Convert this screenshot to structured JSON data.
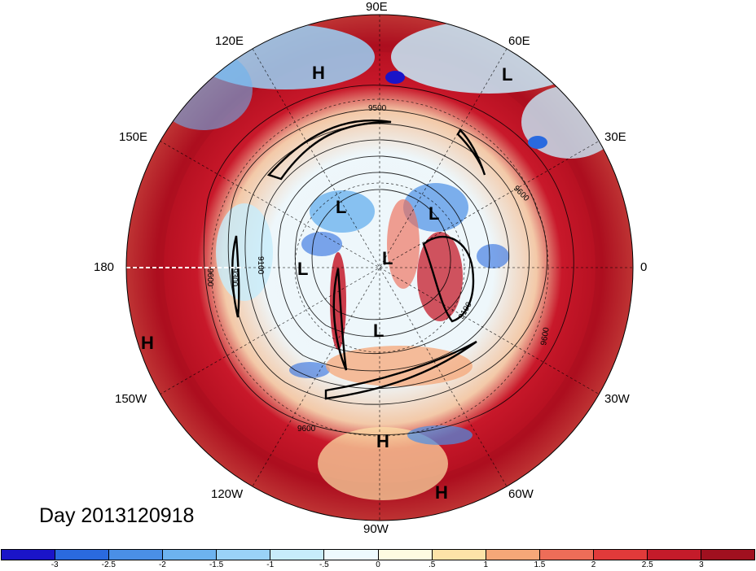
{
  "title": "Day 2013120918",
  "projection": "north-polar-stereographic",
  "longitude_labels": [
    {
      "text": "90E"
    },
    {
      "text": "120E"
    },
    {
      "text": "60E"
    },
    {
      "text": "150E"
    },
    {
      "text": "30E"
    },
    {
      "text": "180"
    },
    {
      "text": "0"
    },
    {
      "text": "150W"
    },
    {
      "text": "30W"
    },
    {
      "text": "120W"
    },
    {
      "text": "60W"
    },
    {
      "text": "90W"
    }
  ],
  "pressure_centers": [
    "H",
    "L",
    "L",
    "L",
    "L",
    "L",
    "L",
    "H",
    "H",
    "H"
  ],
  "contour_labels": [
    "9500",
    "9600",
    "9100",
    "9300",
    "9600",
    "9600",
    "9100",
    "9600"
  ],
  "colorbar": {
    "colors": [
      "#1a14c8",
      "#2a6adf",
      "#4a8fe6",
      "#6db3ef",
      "#9ad2f7",
      "#c7ecfb",
      "#eefafe",
      "#fefbe1",
      "#fde3a8",
      "#f6a778",
      "#ee6d58",
      "#e13a3a",
      "#c41b2a",
      "#a0101f"
    ],
    "ticks": [
      "-3",
      "-2.5",
      "-2",
      "-1.5",
      "-1",
      "-.5",
      "0",
      ".5",
      "1",
      "1.5",
      "2",
      "2.5",
      "3"
    ]
  }
}
